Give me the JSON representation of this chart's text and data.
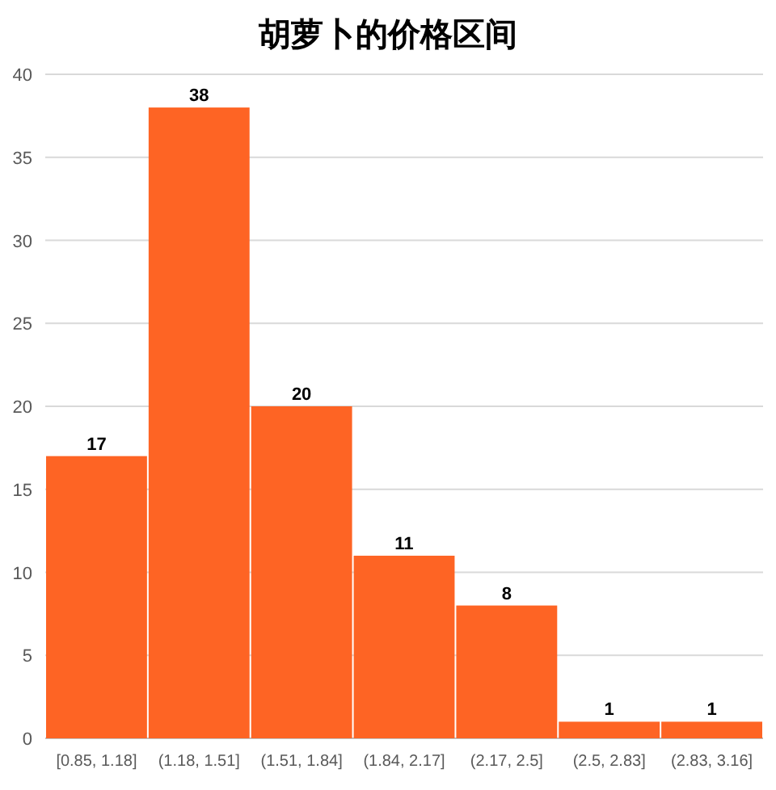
{
  "chart_data": {
    "type": "bar",
    "title": "胡萝卜的价格区间",
    "categories": [
      "[0.85, 1.18]",
      "(1.18, 1.51]",
      "(1.51, 1.84]",
      "(1.84, 2.17]",
      "(2.17, 2.5]",
      "(2.5, 2.83]",
      "(2.83, 3.16]"
    ],
    "values": [
      17,
      38,
      20,
      11,
      8,
      1,
      1
    ],
    "color": "#fe6424",
    "ylim": [
      0,
      40
    ],
    "yticks": [
      0,
      5,
      10,
      15,
      20,
      25,
      30,
      35,
      40
    ],
    "grid": "y",
    "data_labels": true
  }
}
